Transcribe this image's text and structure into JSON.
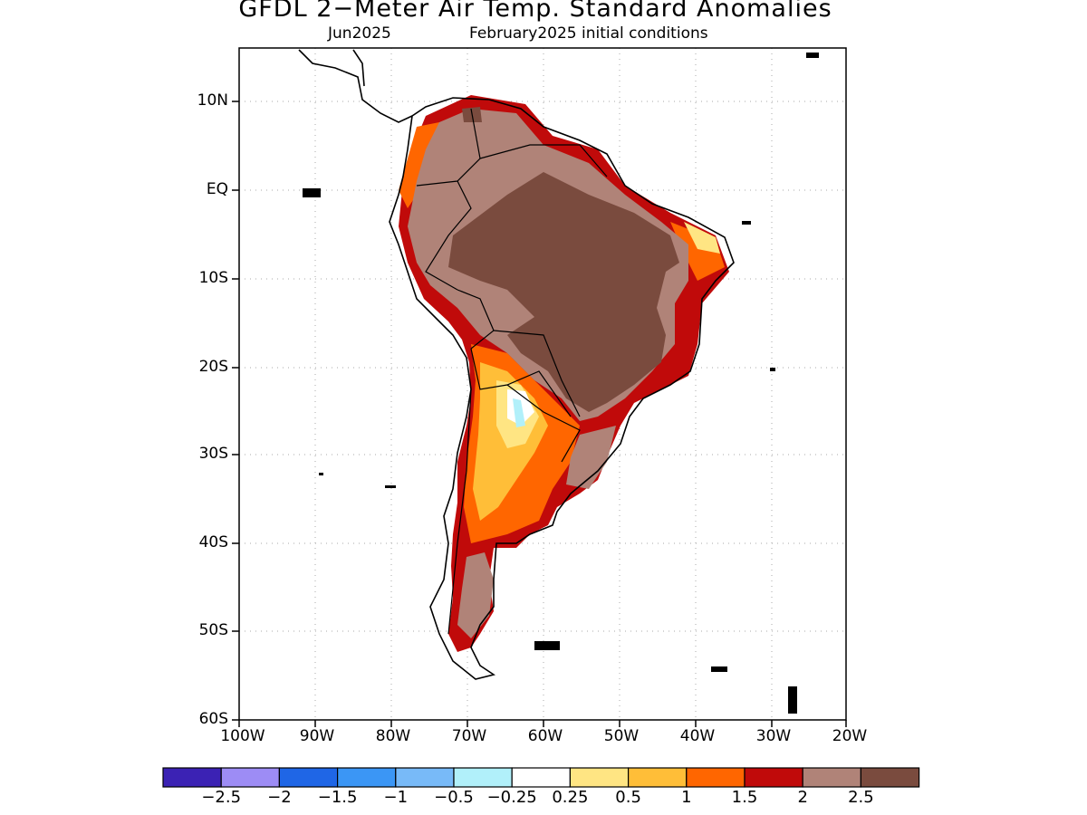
{
  "title": "GFDL 2−Meter Air Temp. Standard Anomalies",
  "subtitle_month": "Jun2025",
  "subtitle_init": "February2025 initial conditions",
  "lat_labels": [
    "10N",
    "EQ",
    "10S",
    "20S",
    "30S",
    "40S",
    "50S",
    "60S"
  ],
  "lon_labels": [
    "100W",
    "90W",
    "80W",
    "70W",
    "60W",
    "50W",
    "40W",
    "30W",
    "20W"
  ],
  "colorbar": {
    "colors": [
      "#3b22b4",
      "#9d8cf5",
      "#1f66e6",
      "#3b96f5",
      "#78baf8",
      "#b1f0fa",
      "#ffffff",
      "#ffe583",
      "#ffbe38",
      "#ff6600",
      "#c00a0a",
      "#b08378",
      "#7a4b3e"
    ],
    "labels": [
      "−2.5",
      "−2",
      "−1.5",
      "−1",
      "−0.5",
      "−0.25",
      "0.25",
      "0.5",
      "1",
      "1.5",
      "2",
      "2.5"
    ]
  },
  "map": {
    "lon_range": [
      -100,
      -20
    ],
    "lat_range": [
      -60,
      6
    ],
    "levels": {
      "strong_warm": "#7a4b3e",
      "warm_brown": "#b08378",
      "red": "#c00a0a",
      "orange": "#ff6600",
      "amber": "#ffbe38",
      "yellow": "#ffe583",
      "near_zero": "#ffffff",
      "slight_cool": "#b1f0fa"
    }
  }
}
